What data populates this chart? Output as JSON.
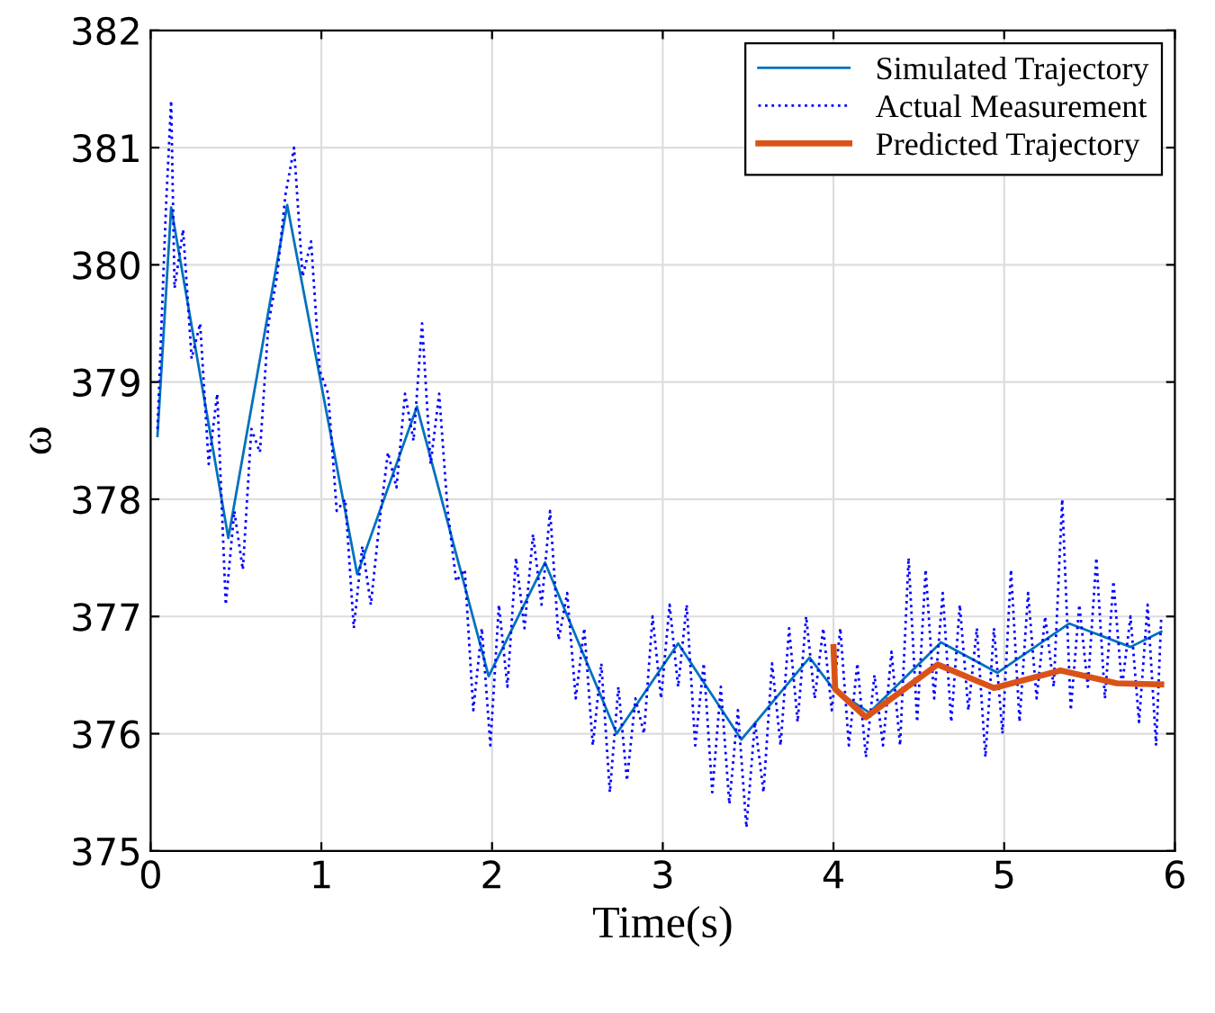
{
  "chart_data": {
    "type": "line",
    "xlabel": "Time(s)",
    "ylabel": "ω",
    "xlim": [
      0,
      6
    ],
    "ylim": [
      375,
      382
    ],
    "xticks": [
      0,
      1,
      2,
      3,
      4,
      5,
      6
    ],
    "yticks": [
      375,
      376,
      377,
      378,
      379,
      380,
      381,
      382
    ],
    "grid": true,
    "legend": "top right",
    "series": [
      {
        "name": "Simulated Trajectory",
        "color": "#0072bd",
        "line_style": "solid",
        "x": [
          0.04,
          0.12,
          0.455,
          0.8,
          1.21,
          1.56,
          1.98,
          2.31,
          2.73,
          3.09,
          3.46,
          3.86,
          4.0,
          4.21,
          4.63,
          4.96,
          5.38,
          5.74,
          5.92
        ],
        "values": [
          378.54,
          380.49,
          377.67,
          380.51,
          377.36,
          378.79,
          376.49,
          377.46,
          376.0,
          376.77,
          375.95,
          376.65,
          376.38,
          376.18,
          376.78,
          376.52,
          376.94,
          376.74,
          376.87
        ]
      },
      {
        "name": "Actual Measurement",
        "color": "#0000ff",
        "line_style": "dotted",
        "x": [
          0.04,
          0.09,
          0.12,
          0.14,
          0.19,
          0.24,
          0.29,
          0.34,
          0.39,
          0.44,
          0.49,
          0.54,
          0.59,
          0.64,
          0.69,
          0.74,
          0.79,
          0.84,
          0.89,
          0.94,
          0.99,
          1.04,
          1.09,
          1.14,
          1.19,
          1.24,
          1.29,
          1.34,
          1.39,
          1.44,
          1.49,
          1.54,
          1.59,
          1.64,
          1.69,
          1.74,
          1.79,
          1.84,
          1.89,
          1.94,
          1.99,
          2.04,
          2.09,
          2.14,
          2.19,
          2.24,
          2.29,
          2.34,
          2.39,
          2.44,
          2.49,
          2.54,
          2.59,
          2.64,
          2.69,
          2.74,
          2.79,
          2.84,
          2.89,
          2.94,
          2.99,
          3.04,
          3.09,
          3.14,
          3.19,
          3.24,
          3.29,
          3.34,
          3.39,
          3.44,
          3.49,
          3.54,
          3.59,
          3.64,
          3.69,
          3.74,
          3.79,
          3.84,
          3.89,
          3.94,
          3.99,
          4.04,
          4.09,
          4.14,
          4.19,
          4.24,
          4.29,
          4.34,
          4.39,
          4.44,
          4.49,
          4.54,
          4.59,
          4.64,
          4.69,
          4.74,
          4.79,
          4.84,
          4.89,
          4.94,
          4.99,
          5.04,
          5.09,
          5.14,
          5.19,
          5.24,
          5.29,
          5.34,
          5.39,
          5.44,
          5.49,
          5.54,
          5.59,
          5.64,
          5.69,
          5.74,
          5.79,
          5.84,
          5.89,
          5.92
        ],
        "values": [
          378.6,
          380.5,
          381.4,
          379.8,
          380.3,
          379.2,
          379.5,
          378.3,
          378.9,
          377.1,
          377.9,
          377.4,
          378.6,
          378.4,
          379.5,
          379.9,
          380.6,
          381.0,
          379.9,
          380.2,
          379.1,
          378.9,
          377.9,
          378.0,
          376.9,
          377.6,
          377.1,
          377.8,
          378.4,
          378.1,
          378.9,
          378.5,
          379.5,
          378.3,
          378.9,
          377.9,
          377.3,
          377.4,
          376.2,
          376.9,
          375.9,
          377.1,
          376.4,
          377.5,
          376.9,
          377.7,
          377.1,
          377.9,
          376.8,
          377.2,
          376.3,
          376.9,
          375.9,
          376.6,
          375.5,
          376.4,
          375.6,
          376.3,
          376.0,
          377.0,
          376.3,
          377.1,
          376.4,
          377.1,
          375.9,
          376.6,
          375.5,
          376.4,
          375.4,
          376.2,
          375.2,
          376.1,
          375.5,
          376.6,
          375.9,
          376.9,
          376.1,
          377.0,
          376.3,
          376.9,
          376.2,
          376.9,
          375.9,
          376.6,
          375.8,
          376.5,
          375.9,
          376.7,
          375.9,
          377.5,
          376.1,
          377.4,
          376.3,
          377.2,
          376.1,
          377.1,
          376.2,
          376.9,
          375.8,
          376.9,
          376.0,
          377.4,
          376.1,
          377.2,
          376.3,
          377.0,
          376.4,
          378.0,
          376.2,
          377.1,
          376.4,
          377.5,
          376.3,
          377.3,
          376.4,
          377.0,
          376.1,
          377.1,
          375.9,
          377.0
        ]
      },
      {
        "name": "Predicted Trajectory",
        "color": "#d95319",
        "line_style": "solid",
        "x": [
          4.0,
          4.01,
          4.19,
          4.61,
          4.94,
          5.33,
          5.66,
          5.92
        ],
        "values": [
          376.74,
          376.38,
          376.14,
          376.59,
          376.39,
          376.54,
          376.43,
          376.42
        ]
      }
    ]
  }
}
